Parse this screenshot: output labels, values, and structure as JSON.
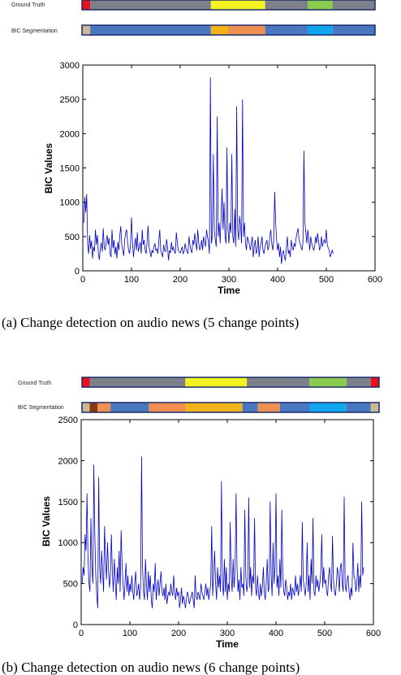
{
  "panels": [
    {
      "bars": [
        {
          "label": "Ground Truth",
          "segments": [
            {
              "start": 0.0,
              "end": 0.028,
              "color": "#e8101c"
            },
            {
              "start": 0.028,
              "end": 0.44,
              "color": "#7c8088"
            },
            {
              "start": 0.44,
              "end": 0.625,
              "color": "#f5f221"
            },
            {
              "start": 0.625,
              "end": 0.77,
              "color": "#7c8088"
            },
            {
              "start": 0.77,
              "end": 0.855,
              "color": "#8acd4e"
            },
            {
              "start": 0.855,
              "end": 1.0,
              "color": "#7c8088"
            }
          ]
        },
        {
          "label": "BIC Segmentation",
          "segments": [
            {
              "start": 0.0,
              "end": 0.028,
              "color": "#cbb994"
            },
            {
              "start": 0.028,
              "end": 0.44,
              "color": "#4a78c0"
            },
            {
              "start": 0.44,
              "end": 0.5,
              "color": "#f2b21a"
            },
            {
              "start": 0.5,
              "end": 0.625,
              "color": "#ef9050"
            },
            {
              "start": 0.625,
              "end": 0.77,
              "color": "#4a78c0"
            },
            {
              "start": 0.77,
              "end": 0.855,
              "color": "#0fa6ee"
            },
            {
              "start": 0.855,
              "end": 1.0,
              "color": "#4a78c0"
            }
          ]
        }
      ],
      "caption": "(a)  Change detection on audio news (5 change points)"
    },
    {
      "bars": [
        {
          "label": "Ground Truth",
          "segments": [
            {
              "start": 0.0,
              "end": 0.026,
              "color": "#e8101c"
            },
            {
              "start": 0.026,
              "end": 0.348,
              "color": "#7c8088"
            },
            {
              "start": 0.348,
              "end": 0.555,
              "color": "#f5f221"
            },
            {
              "start": 0.555,
              "end": 0.765,
              "color": "#7c8088"
            },
            {
              "start": 0.765,
              "end": 0.89,
              "color": "#8acd4e"
            },
            {
              "start": 0.89,
              "end": 0.972,
              "color": "#7c8088"
            },
            {
              "start": 0.972,
              "end": 1.0,
              "color": "#e8101c"
            }
          ]
        },
        {
          "label": "BIC Segmentation",
          "segments": [
            {
              "start": 0.0,
              "end": 0.026,
              "color": "#cbb994"
            },
            {
              "start": 0.026,
              "end": 0.052,
              "color": "#8a3a10"
            },
            {
              "start": 0.052,
              "end": 0.096,
              "color": "#ef9050"
            },
            {
              "start": 0.096,
              "end": 0.225,
              "color": "#4a78c0"
            },
            {
              "start": 0.225,
              "end": 0.348,
              "color": "#ef9050"
            },
            {
              "start": 0.348,
              "end": 0.54,
              "color": "#f2b21a"
            },
            {
              "start": 0.54,
              "end": 0.592,
              "color": "#4a78c0"
            },
            {
              "start": 0.592,
              "end": 0.666,
              "color": "#ef9050"
            },
            {
              "start": 0.666,
              "end": 0.765,
              "color": "#4a78c0"
            },
            {
              "start": 0.765,
              "end": 0.89,
              "color": "#0fa6ee"
            },
            {
              "start": 0.89,
              "end": 0.972,
              "color": "#4a78c0"
            },
            {
              "start": 0.972,
              "end": 1.0,
              "color": "#cbb994"
            }
          ]
        }
      ],
      "caption": "(b)  Change detection on audio news (6 change points)"
    }
  ],
  "colors": {
    "line": "#0000cc",
    "axis": "#000000"
  },
  "chart_data": [
    {
      "type": "line",
      "xlabel": "Time",
      "ylabel": "BIC Values",
      "xlim": [
        0,
        600
      ],
      "ylim": [
        0,
        3000
      ],
      "xticks": [
        0,
        100,
        200,
        300,
        400,
        500,
        600
      ],
      "yticks": [
        0,
        500,
        1000,
        1500,
        2000,
        2500,
        3000
      ],
      "grid": false,
      "x_step": 2,
      "series": [
        {
          "values": [
            700,
            1080,
            850,
            1120,
            380,
            250,
            520,
            320,
            440,
            180,
            350,
            280,
            600,
            380,
            520,
            250,
            160,
            330,
            410,
            280,
            620,
            350,
            300,
            420,
            520,
            380,
            480,
            250,
            200,
            600,
            330,
            450,
            240,
            350,
            180,
            420,
            300,
            520,
            650,
            380,
            300,
            220,
            450,
            550,
            600,
            420,
            300,
            250,
            380,
            780,
            420,
            200,
            350,
            480,
            300,
            560,
            280,
            350,
            420,
            250,
            600,
            380,
            450,
            300,
            250,
            420,
            660,
            350,
            280,
            200,
            300,
            260,
            350,
            400,
            300,
            320,
            250,
            420,
            600,
            300,
            250,
            200,
            380,
            300,
            280,
            460,
            350,
            150,
            300,
            260,
            420,
            300,
            350,
            280,
            250,
            560,
            420,
            300,
            280,
            260,
            300,
            350,
            250,
            280,
            400,
            320,
            280,
            250,
            500,
            380,
            300,
            260,
            450,
            380,
            550,
            400,
            300,
            600,
            420,
            300,
            350,
            450,
            300,
            500,
            420,
            350,
            600,
            500,
            420,
            250,
            2820,
            400,
            500,
            1700,
            600,
            450,
            350,
            2250,
            500,
            700,
            400,
            800,
            1200,
            600,
            1000,
            500,
            400,
            1800,
            600,
            400,
            700,
            550,
            1700,
            500,
            400,
            900,
            350,
            2400,
            600,
            450,
            800,
            650,
            400,
            2500,
            500,
            700,
            400,
            300,
            500,
            450,
            380,
            300,
            400,
            500,
            200,
            350,
            450,
            250,
            300,
            500,
            200,
            350,
            400,
            500,
            300,
            250,
            350,
            400,
            450,
            300,
            350,
            500,
            600,
            400,
            300,
            450,
            1150,
            700,
            450,
            300,
            400,
            200,
            350,
            100,
            250,
            300,
            200,
            150,
            350,
            500,
            250,
            300,
            200,
            450,
            350,
            300,
            400,
            350,
            480,
            560,
            620,
            450,
            400,
            350,
            300,
            400,
            1750,
            700,
            550,
            400,
            600,
            450,
            300,
            500,
            400,
            350,
            300,
            350,
            500,
            400,
            550,
            450,
            300,
            350,
            500,
            350,
            420,
            450,
            400,
            600,
            380,
            330,
            300,
            200,
            250,
            300,
            250
          ]
        }
      ]
    },
    {
      "type": "line",
      "xlabel": "Time",
      "ylabel": "BIC Values",
      "xlim": [
        0,
        600
      ],
      "ylim": [
        0,
        2500
      ],
      "xticks": [
        0,
        100,
        200,
        300,
        400,
        500,
        600
      ],
      "yticks": [
        0,
        500,
        1000,
        1500,
        2000,
        2500
      ],
      "grid": false,
      "x_step": 2,
      "series": [
        {
          "values": [
            500,
            700,
            600,
            1100,
            900,
            1600,
            800,
            500,
            400,
            1300,
            700,
            500,
            1950,
            1100,
            600,
            350,
            200,
            1800,
            700,
            500,
            900,
            650,
            400,
            1200,
            800,
            550,
            1000,
            700,
            450,
            600,
            1100,
            650,
            400,
            800,
            550,
            300,
            700,
            500,
            900,
            400,
            1150,
            750,
            500,
            300,
            500,
            750,
            400,
            600,
            350,
            500,
            400,
            600,
            400,
            300,
            500,
            650,
            350,
            400,
            500,
            300,
            450,
            2050,
            700,
            400,
            300,
            800,
            500,
            300,
            650,
            400,
            600,
            300,
            200,
            500,
            400,
            750,
            300,
            450,
            550,
            350,
            500,
            650,
            400,
            350,
            450,
            300,
            500,
            250,
            350,
            400,
            350,
            500,
            400,
            350,
            600,
            400,
            300,
            450,
            350,
            400,
            200,
            300,
            450,
            250,
            350,
            300,
            200,
            300,
            400,
            350,
            250,
            300,
            350,
            400,
            300,
            200,
            600,
            350,
            300,
            400,
            350,
            300,
            500,
            400,
            350,
            300,
            400,
            500,
            350,
            450,
            300,
            400,
            500,
            1200,
            350,
            600,
            900,
            500,
            300,
            700,
            450,
            600,
            400,
            1750,
            500,
            350,
            800,
            400,
            700,
            300,
            500,
            400,
            1250,
            600,
            400,
            800,
            450,
            650,
            1600,
            700,
            400,
            550,
            300,
            700,
            450,
            500,
            350,
            1400,
            600,
            400,
            500,
            1550,
            450,
            700,
            350,
            600,
            500,
            1300,
            450,
            350,
            600,
            400,
            300,
            500,
            350,
            450,
            700,
            400,
            300,
            500,
            800,
            400,
            450,
            1500,
            600,
            350,
            1000,
            500,
            700,
            1600,
            450,
            600,
            350,
            800,
            450,
            1400,
            600,
            400,
            350,
            550,
            450,
            300,
            400,
            350,
            500,
            300,
            450,
            400,
            350,
            600,
            400,
            500,
            350,
            450,
            600,
            400,
            1250,
            550,
            450,
            350,
            500,
            1000,
            400,
            600,
            300,
            800,
            500,
            1300,
            400,
            350,
            600,
            450,
            550,
            400,
            500,
            650,
            1100,
            450,
            700,
            500,
            550,
            400,
            350,
            600,
            700,
            500,
            400,
            1080,
            550,
            400,
            350,
            500,
            700,
            600,
            400,
            700,
            750,
            500,
            400,
            1560,
            500,
            400,
            550,
            600,
            400,
            300,
            450,
            350,
            1000,
            600,
            550,
            400,
            500,
            750,
            400,
            600,
            450,
            1500,
            600,
            700
          ]
        }
      ]
    }
  ]
}
